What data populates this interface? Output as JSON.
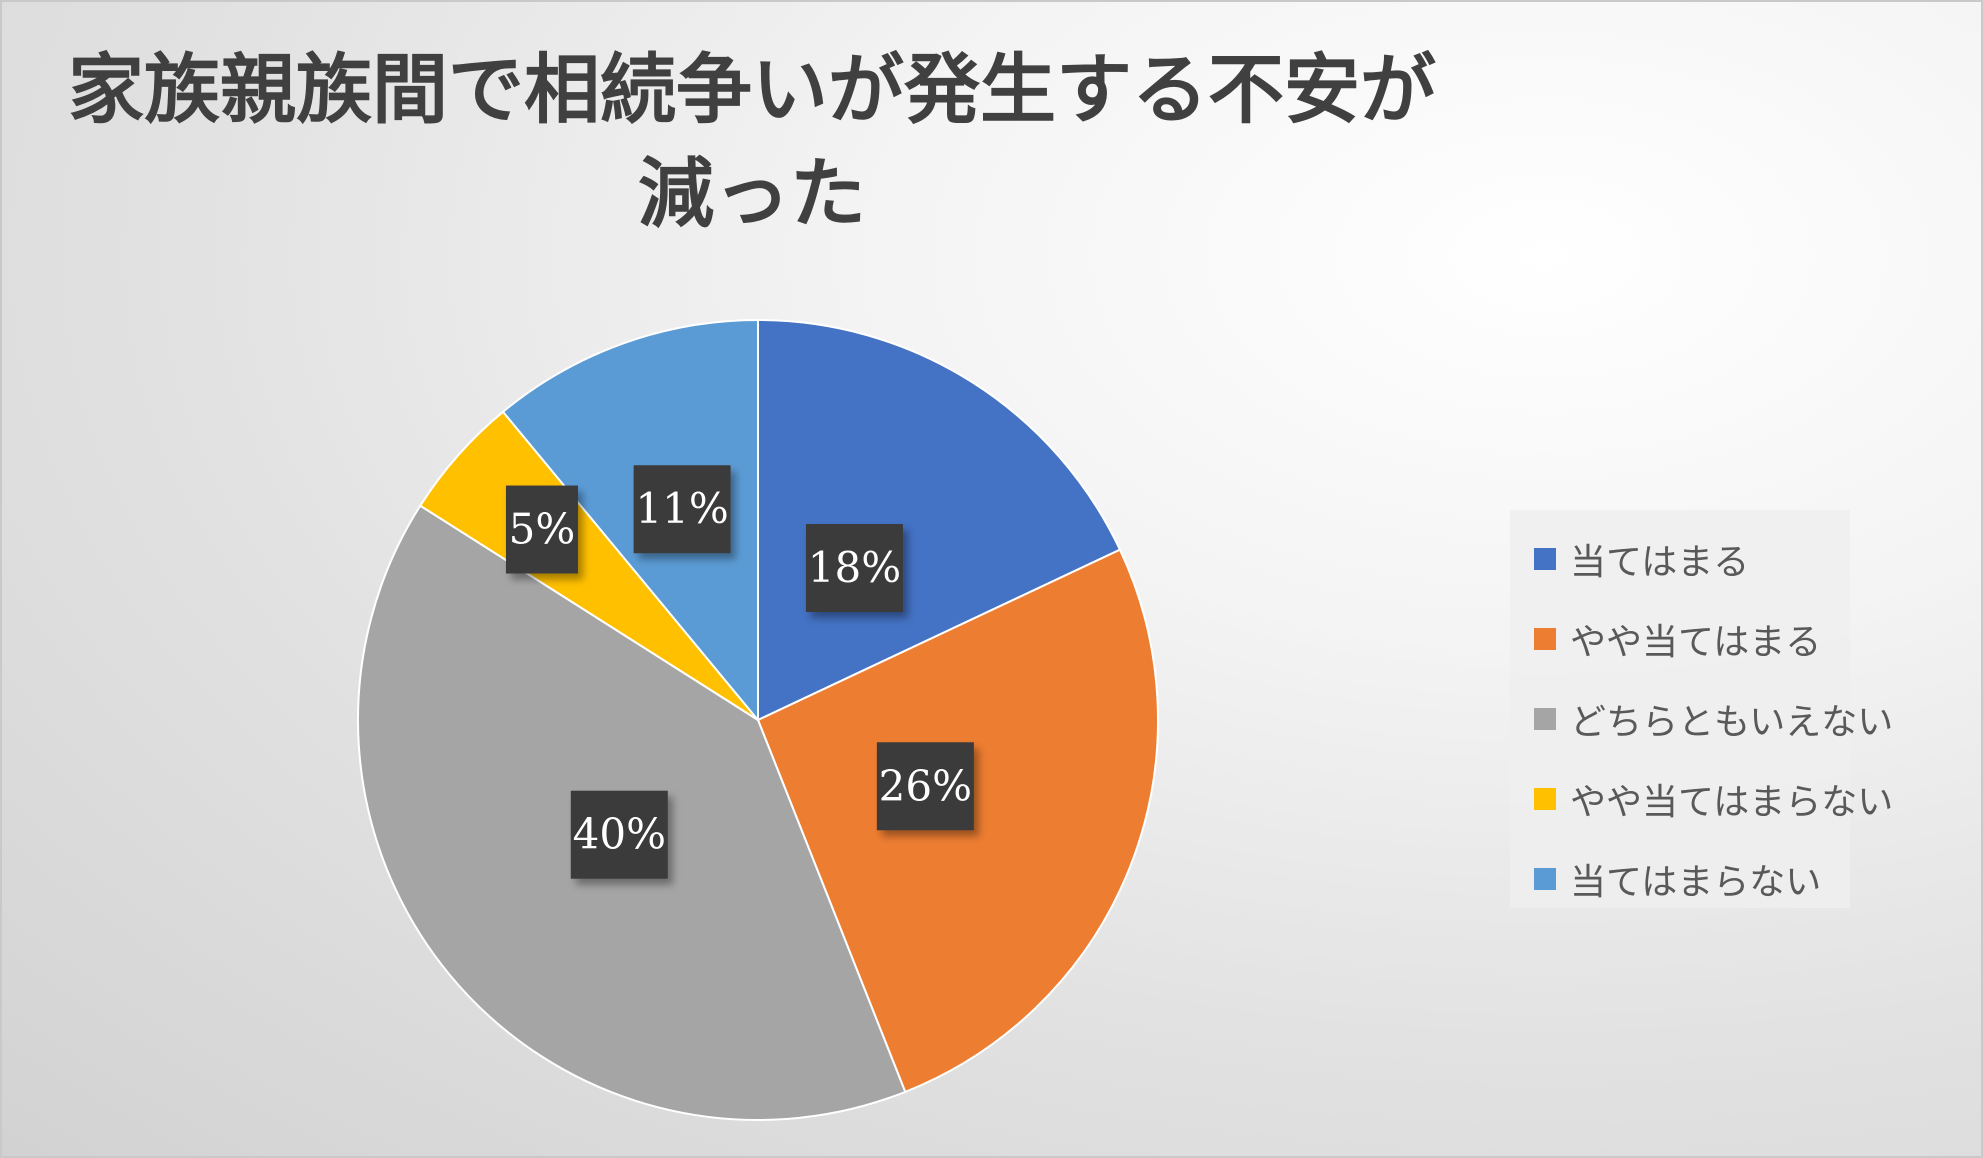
{
  "chart_data": {
    "type": "pie",
    "title": "家族親族間で相続争いが発生する不安が減った",
    "title_lines": [
      "家族親族間で相続争いが発生する不安が",
      "減った"
    ],
    "categories": [
      "当てはまる",
      "やや当てはまる",
      "どちらともいえない",
      "やや当てはまらない",
      "当てはまらない"
    ],
    "values": [
      18,
      26,
      40,
      5,
      11
    ],
    "value_labels": [
      "18%",
      "26%",
      "40%",
      "5%",
      "11%"
    ],
    "colors": [
      "#4472C4",
      "#ED7D31",
      "#A5A5A5",
      "#FFC000",
      "#5B9BD5"
    ],
    "legend_position": "right",
    "grid": false
  }
}
